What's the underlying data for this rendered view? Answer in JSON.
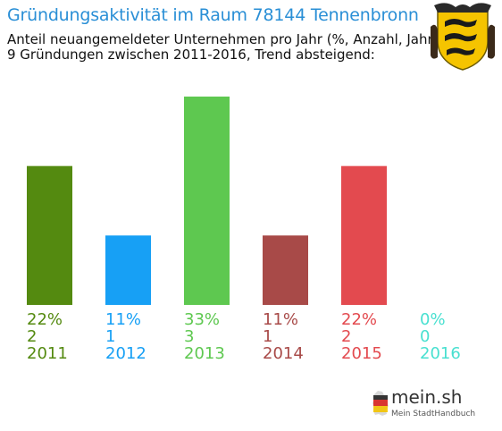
{
  "header": {
    "title": "Gründungsaktivität im Raum 78144 Tennenbronn",
    "subtitle_line1": "Anteil neuangemeldeter Unternehmen pro Jahr (%, Anzahl, Jahr)",
    "subtitle_line2": "9 Gründungen zwischen 2011-2016, Trend absteigend:"
  },
  "colors": {
    "title": "#2a8fd6",
    "bars": [
      "#548a10",
      "#17a0f5",
      "#5ec850",
      "#a84a48",
      "#e34a4f",
      "#48e0d0"
    ]
  },
  "icons": {
    "crest": "coat-of-arms-icon",
    "brand": "germany-map-icon"
  },
  "chart_data": {
    "type": "bar",
    "categories": [
      "2011",
      "2012",
      "2013",
      "2014",
      "2015",
      "2016"
    ],
    "values": [
      2,
      1,
      3,
      1,
      2,
      0
    ],
    "percent_labels": [
      "22%",
      "11%",
      "33%",
      "11%",
      "22%",
      "0%"
    ],
    "count_labels": [
      "2",
      "1",
      "3",
      "1",
      "2",
      "0"
    ],
    "ylim": [
      0,
      3
    ]
  },
  "brand": {
    "name": "mein.sh",
    "tagline": "Mein StadtHandbuch"
  }
}
